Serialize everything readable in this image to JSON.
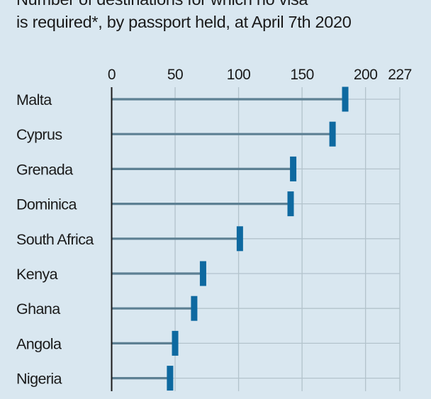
{
  "chart_data": {
    "type": "bar",
    "title_lines": [
      "Number of destinations for which no visa",
      "is required*, by passport held, at April 7th 2020"
    ],
    "categories": [
      "Malta",
      "Cyprus",
      "Grenada",
      "Dominica",
      "South Africa",
      "Kenya",
      "Ghana",
      "Angola",
      "Nigeria"
    ],
    "values": [
      184,
      174,
      143,
      141,
      101,
      72,
      65,
      50,
      46
    ],
    "xlim": [
      0,
      227
    ],
    "xticks": [
      0,
      50,
      100,
      150,
      200,
      227
    ],
    "xtick_labels": [
      "0",
      "50",
      "100",
      "150",
      "200",
      "227"
    ],
    "grid": true,
    "xlabel": "",
    "ylabel": "",
    "colors": {
      "background": "#d9e7f0",
      "stem": "#5d8093",
      "marker": "#0e69a0",
      "grid": "#b3c3cc",
      "axis": "#1a1a1a"
    }
  }
}
